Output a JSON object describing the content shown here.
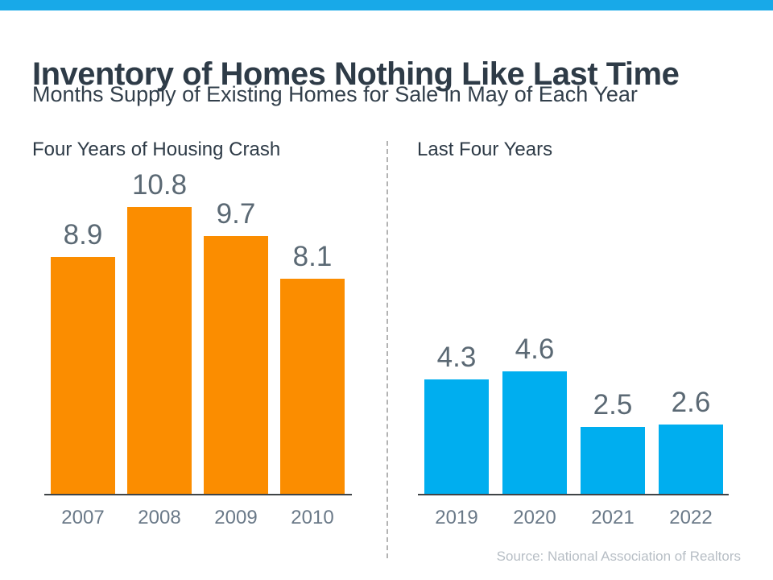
{
  "page": {
    "title": "Inventory of Homes Nothing Like Last Time",
    "subtitle": "Months Supply of Existing Homes for Sale in May of Each Year",
    "source": "Source: National Association of Realtors",
    "accent_bar_color": "#18a9e8",
    "title_color": "#2e3b47",
    "divider_style": "vertical-dashed-gray"
  },
  "chart_data": [
    {
      "type": "bar",
      "title": "Four Years of Housing Crash",
      "categories": [
        "2007",
        "2008",
        "2009",
        "2010"
      ],
      "values": [
        8.9,
        10.8,
        9.7,
        8.1
      ],
      "bar_color": "#fb8d00",
      "value_label_color": "#5b6974",
      "category_label_color": "#6a7988",
      "data_labels": true,
      "grid": false,
      "y_axis_visible": false,
      "ylim": [
        0,
        12
      ],
      "legend": "none"
    },
    {
      "type": "bar",
      "title": "Last Four Years",
      "categories": [
        "2019",
        "2020",
        "2021",
        "2022"
      ],
      "values": [
        4.3,
        4.6,
        2.5,
        2.6
      ],
      "bar_color": "#00aeef",
      "value_label_color": "#5b6974",
      "category_label_color": "#6a7988",
      "data_labels": true,
      "grid": false,
      "y_axis_visible": false,
      "ylim": [
        0,
        12
      ],
      "legend": "none"
    }
  ]
}
